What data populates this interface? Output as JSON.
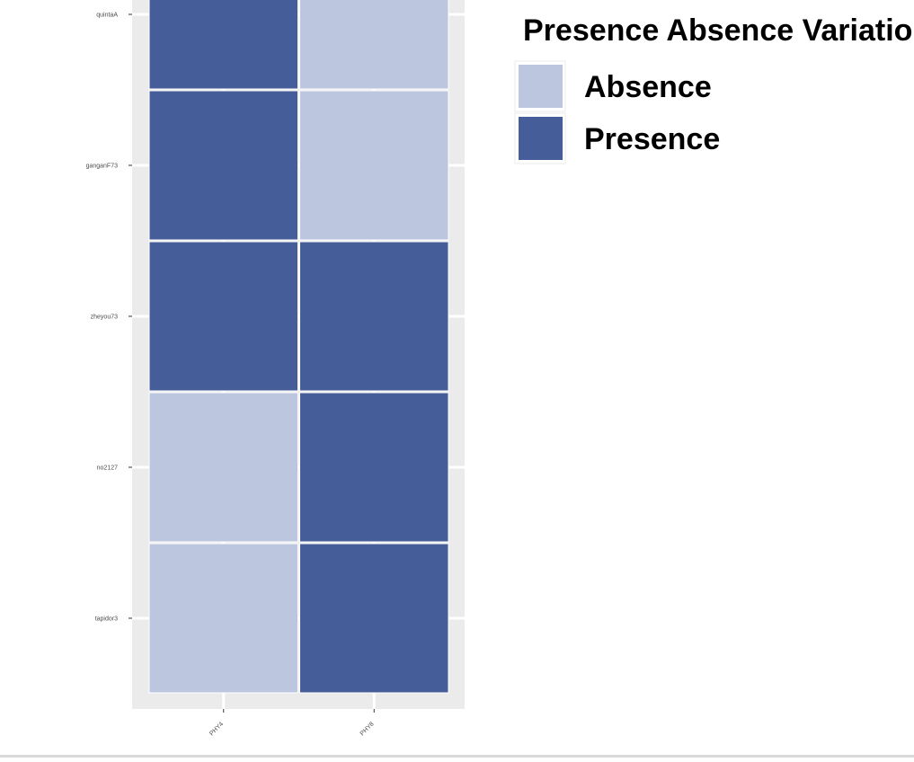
{
  "chart_data": {
    "type": "heatmap",
    "title": "",
    "xlabel": "",
    "ylabel": "",
    "x_categories": [
      "PHY4",
      "PHY8"
    ],
    "y_categories": [
      "quintaA",
      "ganganF73",
      "zheyou73",
      "no2127",
      "tapidor3"
    ],
    "values": [
      [
        "Presence",
        "Absence"
      ],
      [
        "Presence",
        "Absence"
      ],
      [
        "Presence",
        "Presence"
      ],
      [
        "Absence",
        "Presence"
      ],
      [
        "Absence",
        "Presence"
      ]
    ],
    "grid": true,
    "legend": {
      "title": "Presence Absence Variation",
      "placement": "right",
      "entries": [
        {
          "label": "Absence",
          "color": "#bdc6df"
        },
        {
          "label": "Presence",
          "color": "#455d98"
        }
      ]
    },
    "colors": {
      "panel_background": "#ebebeb",
      "grid_line": "#ffffff",
      "tile_border": "#ffffff"
    }
  }
}
